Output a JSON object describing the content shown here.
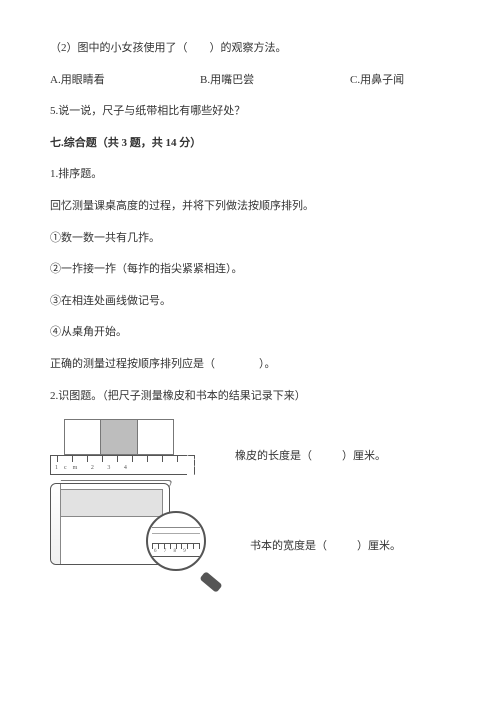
{
  "q2": "（2）图中的小女孩使用了（　　）的观察方法。",
  "options": {
    "a": "A.用眼睛看",
    "b": "B.用嘴巴尝",
    "c": "C.用鼻子闻"
  },
  "q5": "5.说一说，尺子与纸带相比有哪些好处？",
  "section7_title": "七.综合题（共 3 题，共 14 分）",
  "p1": {
    "title": "1.排序题。",
    "intro": "回忆测量课桌高度的过程，并将下列做法按顺序排列。",
    "s1": "①数一数一共有几拃。",
    "s2": "②一拃接一拃（每拃的指尖紧紧相连）。",
    "s3": "③在相连处画线做记号。",
    "s4": "④从桌角开始。",
    "conclusion": "正确的测量过程按顺序排列应是（　　　　）。"
  },
  "p2": {
    "title": "2.识图题。（把尺子测量橡皮和书本的结果记录下来）",
    "ruler_labels": "1cm 2  3  4",
    "mag_labels": "6 7 8 9",
    "eraser_caption_pre": "橡皮的长度是（",
    "eraser_caption_post": "）厘米。",
    "book_caption_pre": "书本的宽度是（",
    "book_caption_post": "）厘米。"
  }
}
